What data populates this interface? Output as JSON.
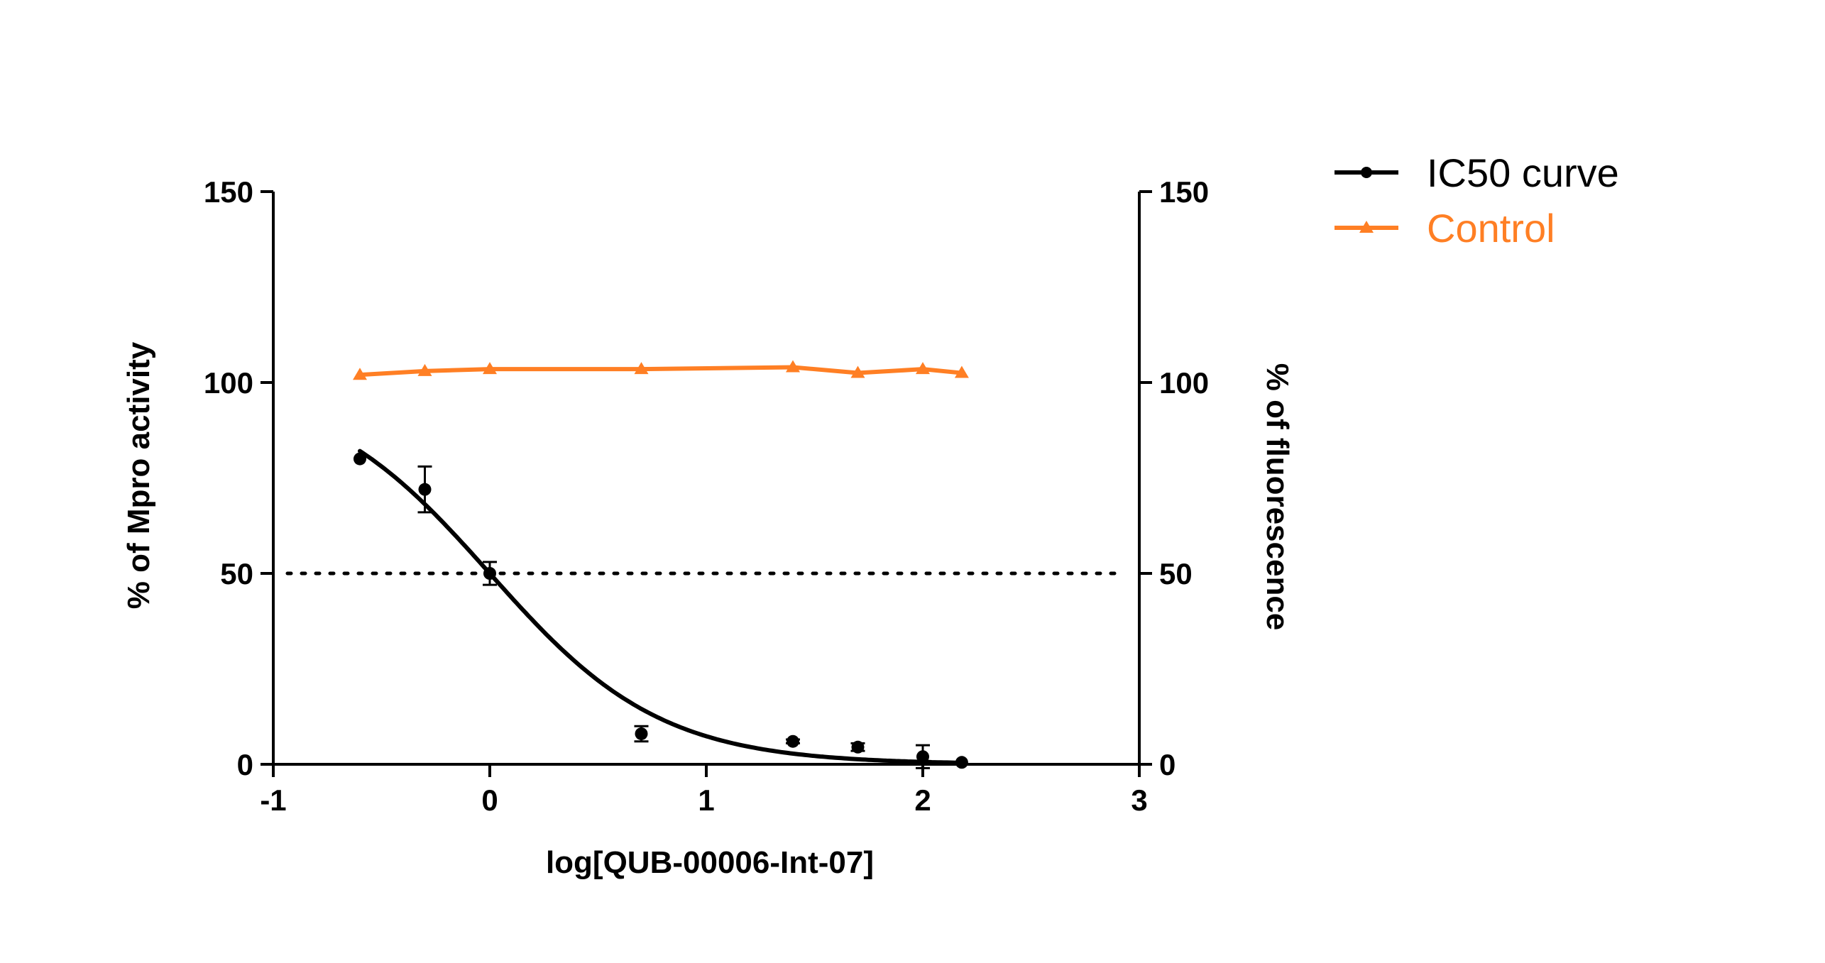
{
  "chart_data": {
    "type": "line",
    "xlabel": "log[QUB-00006-Int-07]",
    "ylabel_left": "% of Mpro activity",
    "ylabel_right": "% of fluorescence",
    "xlim": [
      -1,
      3
    ],
    "ylim": [
      0,
      150
    ],
    "xticks": [
      "-1",
      "0",
      "1",
      "2",
      "3"
    ],
    "yticks_left": [
      "0",
      "50",
      "100",
      "150"
    ],
    "yticks_right": [
      "0",
      "50",
      "100",
      "150"
    ],
    "grid": false,
    "legend_position": "top-right",
    "reference_line": {
      "y": 50,
      "style": "dotted"
    },
    "series": [
      {
        "name": "IC50 curve",
        "color": "#000000",
        "marker": "circle",
        "x": [
          -0.6,
          -0.3,
          0.0,
          0.7,
          1.4,
          1.7,
          2.0,
          2.18
        ],
        "y": [
          80,
          72,
          50,
          8,
          6,
          4.5,
          2,
          0.5
        ],
        "error": [
          0,
          6,
          3,
          2,
          0.5,
          1,
          3,
          0
        ]
      },
      {
        "name": "Control",
        "color": "#FF7F24",
        "marker": "triangle",
        "x": [
          -0.6,
          -0.3,
          0.0,
          0.7,
          1.4,
          1.7,
          2.0,
          2.18
        ],
        "y": [
          102,
          103,
          103.5,
          103.5,
          104,
          102.5,
          103.5,
          102.5
        ]
      }
    ],
    "fit": {
      "series": "IC50 curve",
      "bottom": 0,
      "top": 100,
      "log_ic50": 0.0,
      "hill_slope": -1.1
    }
  }
}
